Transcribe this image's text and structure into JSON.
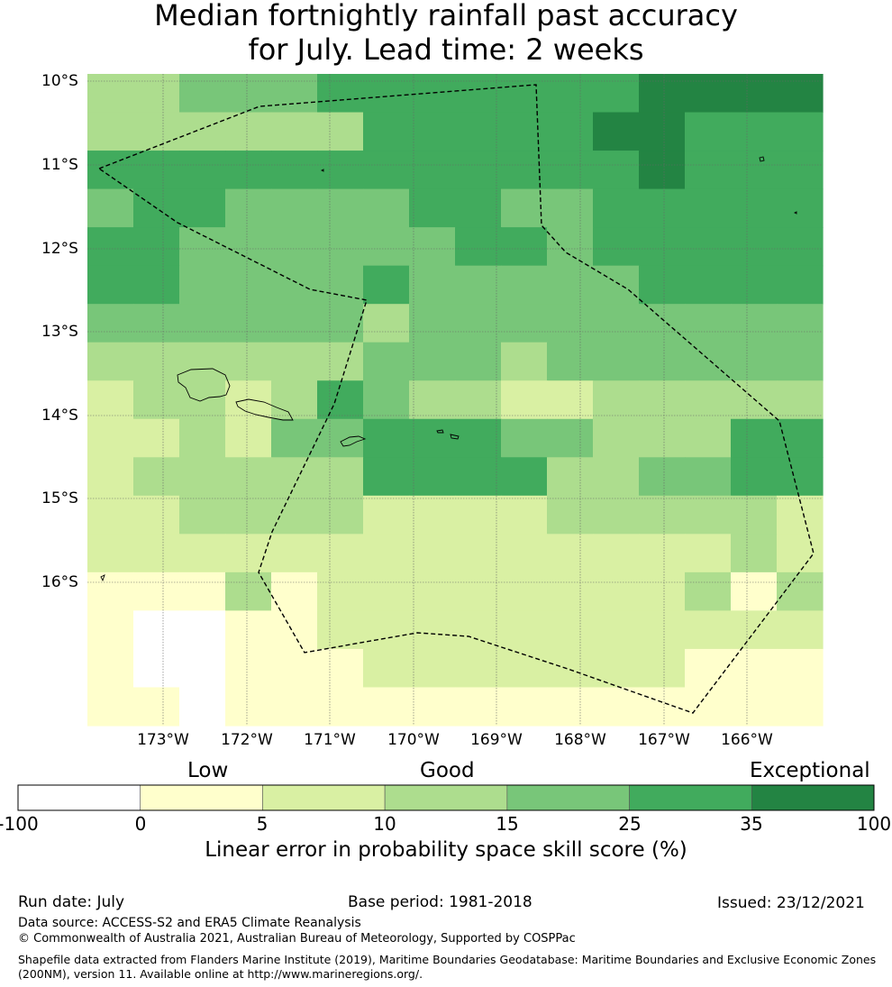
{
  "title": {
    "line1": "Median fortnightly rainfall past accuracy",
    "line2": "for July. Lead time: 2 weeks"
  },
  "map": {
    "lat_labels": [
      "10°S",
      "11°S",
      "12°S",
      "13°S",
      "14°S",
      "15°S",
      "16°S"
    ],
    "lon_labels": [
      "173°W",
      "172°W",
      "171°W",
      "170°W",
      "169°W",
      "168°W",
      "167°W",
      "166°W"
    ],
    "grid": [
      "3344455555556666",
      "3333335555566555",
      "5555555555556555",
      "4554444554455555",
      "5544444455455555",
      "5544445444445555",
      "4444443444444444",
      "3333334443444444",
      "2332354332233333",
      "2232445554433355",
      "2333335555334455",
      "2233332222333332",
      "2222222222222232",
      "1113122222222313",
      "1001122222222222",
      "1001112222222111",
      "1101111111111111"
    ],
    "colors": {
      "0": "#ffffff",
      "1": "#ffffcc",
      "2": "#d9f0a3",
      "3": "#addd8e",
      "4": "#78c679",
      "5": "#41ab5d",
      "6": "#238443"
    }
  },
  "colorbar": {
    "category_labels": [
      "Low",
      "Good",
      "Exceptional"
    ],
    "ticks": [
      "-100",
      "0",
      "5",
      "10",
      "15",
      "25",
      "35",
      "100"
    ],
    "colors": [
      "#ffffff",
      "#ffffcc",
      "#d9f0a3",
      "#addd8e",
      "#78c679",
      "#41ab5d",
      "#238443"
    ],
    "title": "Linear error in probability space skill score (%)"
  },
  "footer": {
    "run_date": "Run date: July",
    "base_period": "Base period: 1981-2018",
    "issued": "Issued: 23/12/2021",
    "data_source": "Data source: ACCESS-S2 and ERA5 Climate Reanalysis",
    "copyright": "© Commonwealth of Australia 2021, Australian Bureau of Meteorology, Supported by COSPPac",
    "shapefile": "Shapefile data extracted from Flanders Marine Institute (2019), Maritime Boundaries Geodatabase: Maritime Boundaries and Exclusive Economic Zones (200NM), version 11. Available online at http://www.marineregions.org/."
  }
}
